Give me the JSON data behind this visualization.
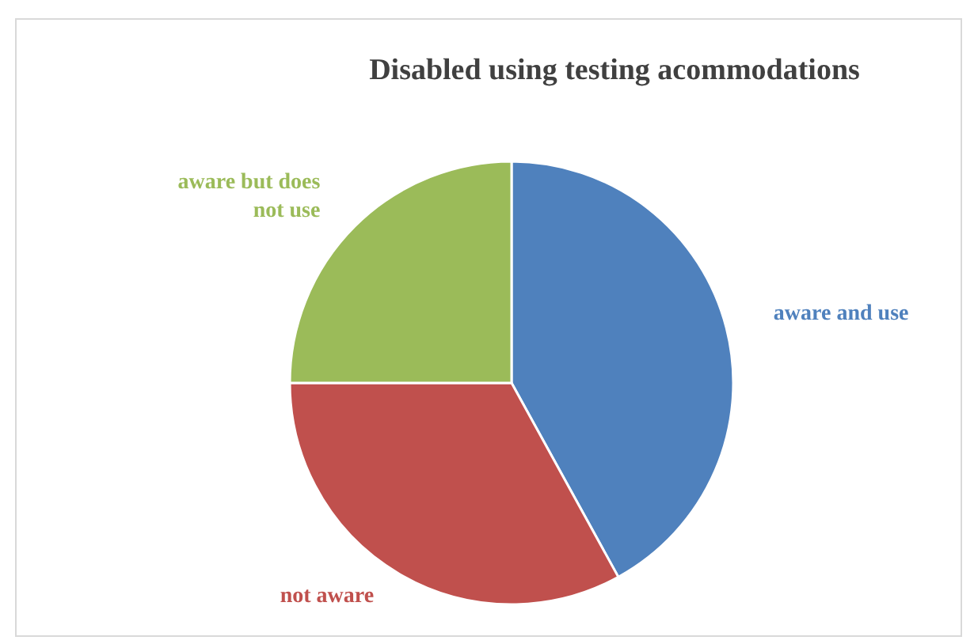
{
  "chart_data": {
    "type": "pie",
    "title": "Disabled using testing acommodations",
    "categories": [
      "aware and use",
      "not aware",
      "aware but does not use"
    ],
    "values": [
      42,
      33,
      25
    ],
    "colors": [
      "#4f81bd",
      "#c0504d",
      "#9bbb59"
    ]
  }
}
